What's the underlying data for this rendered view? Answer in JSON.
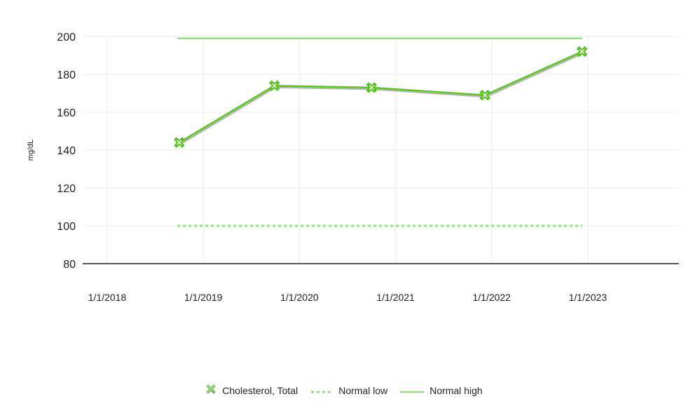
{
  "chart_data": {
    "type": "line",
    "title": "",
    "xlabel": "",
    "ylabel": "mg/dL",
    "ylim": [
      80,
      200
    ],
    "yticks": [
      80,
      100,
      120,
      140,
      160,
      180,
      200
    ],
    "xticks": [
      "1/1/2018",
      "1/1/2019",
      "1/1/2020",
      "1/1/2021",
      "1/1/2022",
      "1/1/2023"
    ],
    "x_range": [
      2018.0,
      2024.0
    ],
    "grid": true,
    "legend_position": "bottom",
    "series": [
      {
        "name": "Cholesterol, Total",
        "style": "line-with-x-markers",
        "color": "#5bc820",
        "x": [
          2018.75,
          2019.74,
          2020.75,
          2021.93,
          2022.94
        ],
        "values": [
          144,
          174,
          173,
          169,
          192
        ]
      },
      {
        "name": "Normal low",
        "style": "dotted",
        "color": "#8ee07a",
        "x": [
          2018.73,
          2022.94
        ],
        "values": [
          100,
          100
        ]
      },
      {
        "name": "Normal high",
        "style": "solid",
        "color": "#8ee07a",
        "x": [
          2018.73,
          2022.94
        ],
        "values": [
          199,
          199
        ]
      }
    ]
  },
  "legend": {
    "items": [
      {
        "label": "Cholesterol, Total"
      },
      {
        "label": "Normal low"
      },
      {
        "label": "Normal high"
      }
    ]
  }
}
